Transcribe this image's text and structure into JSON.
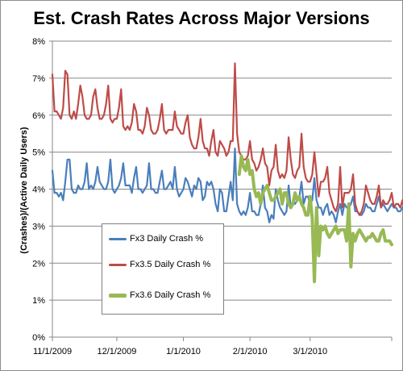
{
  "chart_data": {
    "type": "line",
    "title": "Est. Crash Rates Across Major Versions",
    "ylabel": "(Crashes)/(Active Daily Users)",
    "xlabel": "",
    "ylim": [
      0,
      8
    ],
    "y_ticks": [
      "0%",
      "1%",
      "2%",
      "3%",
      "4%",
      "5%",
      "6%",
      "7%",
      "8%"
    ],
    "x_ticks": [
      "11/1/2009",
      "12/1/2009",
      "1/1/2010",
      "2/1/2010",
      "3/1/2010"
    ],
    "x_range": [
      "11/1/2009",
      "4/8/2010"
    ],
    "grid": "horizontal major gridlines",
    "legend_position": "bottom-left inside plot",
    "series": [
      {
        "name": "Fx3 Daily Crash %",
        "color": "#4a7ebb",
        "start_date": "11/1/2009",
        "values": [
          4.5,
          3.9,
          3.9,
          3.8,
          3.9,
          3.7,
          4.2,
          4.8,
          4.8,
          4.0,
          3.9,
          3.9,
          4.1,
          4.0,
          4.0,
          4.2,
          4.7,
          4.0,
          4.1,
          4.0,
          4.2,
          4.6,
          4.2,
          4.1,
          4.0,
          4.0,
          4.2,
          4.8,
          4.0,
          3.9,
          4.0,
          4.1,
          4.3,
          4.7,
          4.1,
          4.1,
          4.1,
          3.9,
          4.3,
          4.6,
          4.0,
          4.0,
          3.9,
          4.0,
          4.1,
          4.7,
          4.0,
          4.0,
          3.9,
          3.9,
          4.2,
          4.5,
          4.0,
          4.0,
          4.1,
          4.2,
          4.0,
          4.6,
          4.0,
          3.8,
          3.9,
          4.0,
          4.3,
          4.2,
          4.0,
          3.8,
          4.1,
          4.0,
          4.3,
          4.2,
          3.7,
          3.8,
          4.2,
          4.1,
          4.2,
          4.0,
          3.6,
          3.4,
          4.0,
          3.9,
          3.4,
          3.4,
          3.8,
          4.2,
          3.7,
          5.1,
          3.6,
          3.4,
          3.3,
          3.4,
          3.3,
          3.5,
          3.9,
          3.4,
          3.4,
          3.3,
          3.3,
          3.6,
          4.1,
          3.5,
          3.4,
          3.1,
          3.3,
          3.2,
          4.0,
          3.7,
          3.5,
          3.4,
          3.3,
          3.4,
          4.1,
          3.5,
          3.6,
          3.6,
          3.7,
          3.8,
          4.2,
          3.6,
          3.8,
          3.8,
          3.6,
          3.7,
          4.3,
          3.7,
          3.5,
          3.5,
          3.3,
          3.5,
          3.6,
          3.3,
          3.4,
          3.3,
          3.1,
          3.4,
          3.6,
          3.3,
          3.6,
          3.5,
          3.5,
          3.6,
          3.8,
          3.4,
          3.4,
          3.3,
          3.3,
          3.4,
          3.6,
          3.5,
          3.5,
          3.4,
          3.4,
          3.6,
          3.8,
          3.5,
          3.6,
          3.5,
          3.4,
          3.5,
          3.6,
          3.5,
          3.5,
          3.4,
          3.4,
          3.5,
          3.6
        ]
      },
      {
        "name": "Fx3.5 Daily Crash %",
        "color": "#be4b48",
        "start_date": "11/1/2009",
        "values": [
          7.1,
          6.1,
          6.1,
          6.0,
          5.9,
          6.2,
          7.2,
          7.1,
          6.0,
          5.9,
          6.1,
          5.9,
          6.3,
          6.8,
          6.5,
          6.0,
          5.9,
          5.9,
          6.0,
          6.5,
          6.7,
          6.2,
          5.9,
          5.9,
          6.0,
          6.3,
          6.8,
          5.9,
          5.8,
          5.9,
          5.9,
          6.2,
          6.7,
          5.7,
          5.6,
          5.7,
          5.6,
          5.8,
          6.3,
          6.1,
          5.6,
          5.6,
          5.5,
          5.7,
          6.2,
          6.0,
          5.6,
          5.5,
          5.5,
          5.6,
          5.9,
          6.3,
          5.6,
          5.5,
          5.6,
          5.6,
          5.6,
          6.1,
          5.7,
          5.6,
          5.5,
          5.5,
          5.8,
          6.0,
          5.4,
          5.2,
          5.1,
          5.1,
          5.4,
          5.9,
          5.3,
          5.1,
          5.1,
          4.9,
          5.3,
          5.6,
          5.0,
          4.9,
          5.3,
          5.2,
          5.1,
          4.9,
          5.0,
          5.3,
          5.3,
          7.4,
          5.5,
          5.0,
          4.9,
          4.8,
          4.8,
          4.9,
          5.3,
          4.8,
          4.7,
          4.5,
          4.6,
          4.8,
          5.1,
          4.7,
          4.6,
          4.1,
          4.5,
          4.6,
          5.2,
          4.5,
          4.3,
          4.4,
          4.3,
          4.5,
          5.4,
          4.8,
          4.4,
          4.3,
          4.5,
          4.6,
          5.5,
          4.6,
          4.3,
          4.2,
          4.2,
          4.4,
          5.0,
          4.4,
          3.8,
          4.2,
          4.2,
          4.3,
          4.6,
          3.9,
          3.7,
          3.5,
          3.4,
          3.6,
          4.6,
          3.5,
          3.9,
          3.9,
          3.9,
          4.0,
          4.4,
          3.6,
          3.4,
          3.3,
          3.4,
          3.6,
          4.1,
          3.9,
          3.7,
          3.6,
          3.6,
          3.8,
          4.1,
          3.5,
          3.7,
          3.6,
          3.6,
          3.7,
          3.9,
          3.5,
          3.6,
          3.6,
          3.5,
          3.7,
          3.5
        ]
      },
      {
        "name": "Fx3.6 Daily Crash %",
        "color": "#98b954",
        "start_date": "1/27/2010",
        "values": [
          4.4,
          4.9,
          4.6,
          4.5,
          4.8,
          4.4,
          4.5,
          4.0,
          3.8,
          3.9,
          3.6,
          3.9,
          4.0,
          4.1,
          3.9,
          3.7,
          3.7,
          3.8,
          3.9,
          4.0,
          3.6,
          3.9,
          3.9,
          3.6,
          3.5,
          3.6,
          3.9,
          3.7,
          3.8,
          3.6,
          3.5,
          3.3,
          3.3,
          3.8,
          3.2,
          1.5,
          3.5,
          2.2,
          3.0,
          2.9,
          3.0,
          2.8,
          2.7,
          2.8,
          2.9,
          3.0,
          2.8,
          2.9,
          2.9,
          2.9,
          2.6,
          3.6,
          1.9,
          2.8,
          2.6,
          2.8,
          2.9,
          2.8,
          2.7,
          2.6,
          2.7,
          2.7,
          2.8,
          2.7,
          2.6,
          2.6,
          2.8,
          2.9,
          2.6,
          2.6,
          2.6,
          2.5
        ]
      }
    ]
  }
}
